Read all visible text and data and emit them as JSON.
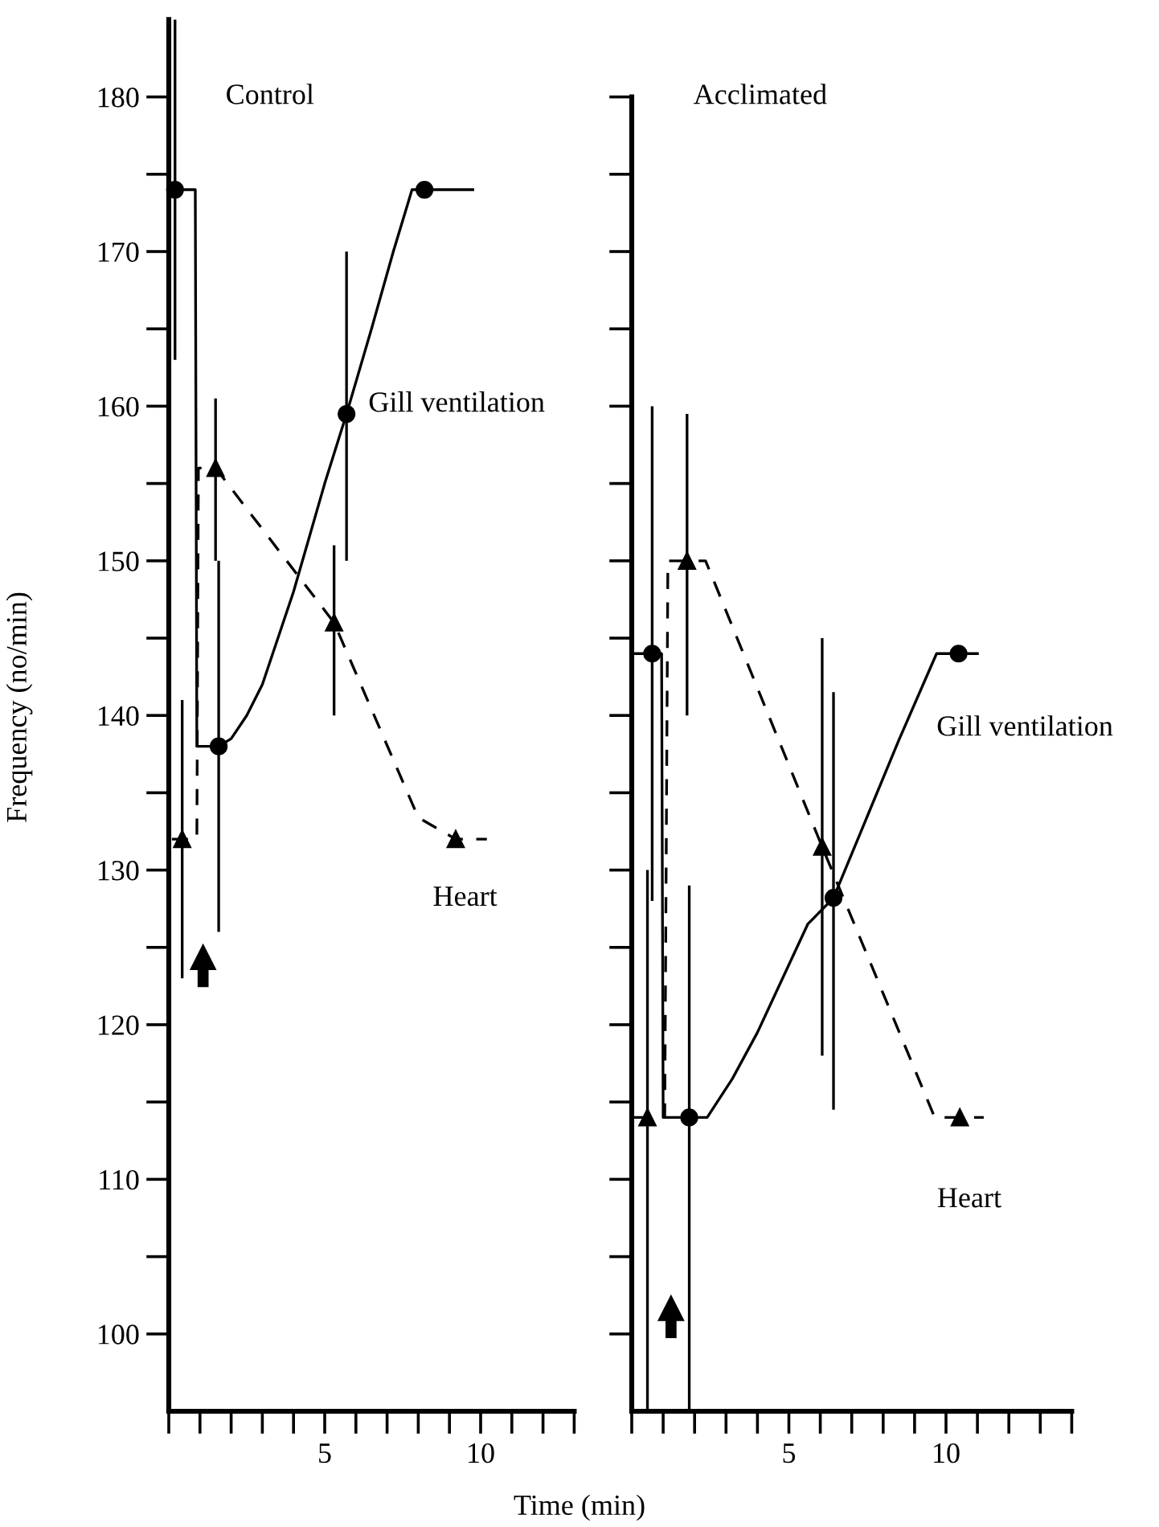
{
  "chart_data": [
    {
      "type": "line",
      "title": "Control",
      "xlabel": "Time (min)",
      "ylabel": "Frequency (no/min)",
      "xlim": [
        0,
        13
      ],
      "xticks": [
        {
          "value": 0,
          "label": null
        },
        {
          "value": 1,
          "label": null
        },
        {
          "value": 2,
          "label": null
        },
        {
          "value": 3,
          "label": null
        },
        {
          "value": 4,
          "label": null
        },
        5,
        {
          "value": 6,
          "label": null
        },
        {
          "value": 7,
          "label": null
        },
        {
          "value": 8,
          "label": null
        },
        {
          "value": 9,
          "label": null
        },
        10,
        {
          "value": 11,
          "label": null
        },
        {
          "value": 12,
          "label": null
        },
        {
          "value": 13,
          "label": null
        }
      ],
      "ylim": [
        95,
        185
      ],
      "yticks": [
        100,
        {
          "value": 105,
          "label": null
        },
        110,
        {
          "value": 115,
          "label": null
        },
        120,
        {
          "value": 125,
          "label": null
        },
        130,
        {
          "value": 135,
          "label": null
        },
        140,
        {
          "value": 145,
          "label": null
        },
        150,
        {
          "value": 155,
          "label": null
        },
        160,
        {
          "value": 165,
          "label": null
        },
        170,
        {
          "value": 175,
          "label": null
        },
        180
      ],
      "series": [
        {
          "name": "Gill ventilation",
          "line_style": "solid",
          "marker": "none",
          "color": "#000000",
          "x": [
            0.0,
            0.2,
            0.85,
            0.9,
            1.6,
            2.0,
            2.5,
            3.0,
            3.5,
            4.0,
            4.5,
            5.0,
            5.7,
            6.5,
            7.2,
            7.8,
            8.2,
            9.75
          ],
          "values": [
            174,
            174,
            174,
            138,
            138,
            138.5,
            140,
            142,
            145,
            148,
            151.5,
            155,
            159.5,
            165,
            170,
            174,
            174,
            174
          ]
        },
        {
          "type": "scatter",
          "marker": "circle",
          "color": "#000000",
          "x": [
            0.2,
            1.6,
            5.7,
            8.2
          ],
          "values": [
            174,
            138,
            159.5,
            174
          ],
          "errors": [
            [
              163,
              185
            ],
            [
              126,
              150
            ],
            [
              150,
              170
            ],
            null
          ]
        },
        {
          "name": "Heart",
          "line_style": "dashed",
          "marker": "none",
          "color": "#000000",
          "x": [
            0.1,
            0.43,
            0.9,
            0.95,
            1.5,
            5.3,
            8.0,
            9.2,
            10.2
          ],
          "values": [
            132,
            132,
            132,
            156,
            156,
            146,
            133.4,
            132,
            132
          ]
        },
        {
          "type": "scatter",
          "marker": "triangle",
          "color": "#000000",
          "x": [
            0.43,
            1.5,
            5.3,
            9.2
          ],
          "values": [
            132,
            156,
            146,
            132
          ],
          "errors": [
            [
              123,
              141
            ],
            [
              150,
              160.5
            ],
            [
              140,
              151
            ],
            null
          ]
        }
      ]
    },
    {
      "type": "line",
      "title": "Acclimated",
      "tick_labels": "x",
      "xlim": [
        0,
        14
      ],
      "xticks": [
        {
          "value": 0,
          "label": null
        },
        {
          "value": 1,
          "label": null
        },
        {
          "value": 2,
          "label": null
        },
        {
          "value": 3,
          "label": null
        },
        {
          "value": 4,
          "label": null
        },
        5,
        {
          "value": 6,
          "label": null
        },
        {
          "value": 7,
          "label": null
        },
        {
          "value": 8,
          "label": null
        },
        {
          "value": 9,
          "label": null
        },
        10,
        {
          "value": 11,
          "label": null
        },
        {
          "value": 12,
          "label": null
        },
        {
          "value": 13,
          "label": null
        },
        {
          "value": 14,
          "label": null
        }
      ],
      "ylim": [
        95,
        180
      ],
      "yticks": [
        100,
        105,
        110,
        115,
        120,
        125,
        130,
        135,
        140,
        145,
        150,
        155,
        160,
        165,
        170,
        175,
        180
      ],
      "series": [
        {
          "name": "Gill ventilation",
          "line_style": "solid",
          "marker": "none",
          "color": "#000000",
          "x": [
            0.05,
            0.65,
            0.95,
            1.0,
            1.83,
            2.4,
            3.2,
            4.0,
            4.8,
            5.6,
            6.42,
            7.5,
            8.5,
            9.7,
            10.4,
            11.0
          ],
          "values": [
            144,
            144,
            144,
            114,
            114,
            114,
            116.5,
            119.5,
            123,
            126.5,
            128.2,
            133.5,
            138.4,
            144,
            144,
            144
          ]
        },
        {
          "type": "scatter",
          "marker": "circle",
          "color": "#000000",
          "x": [
            0.65,
            1.83,
            6.42,
            10.4
          ],
          "values": [
            144,
            114,
            128.2,
            144
          ],
          "errors": [
            [
              128,
              160
            ],
            [
              95,
              129
            ],
            [
              114.5,
              141.5
            ],
            null
          ]
        },
        {
          "name": "Heart",
          "line_style": "dashed",
          "marker": "none",
          "color": "#000000",
          "x": [
            0.05,
            0.5,
            1.05,
            1.15,
            1.76,
            2.35,
            6.06,
            9.64,
            10.44,
            11.2
          ],
          "values": [
            114,
            114,
            114,
            150,
            150,
            150,
            131.5,
            114,
            114,
            114
          ]
        },
        {
          "type": "scatter",
          "marker": "triangle",
          "color": "#000000",
          "x": [
            0.5,
            1.76,
            6.06,
            10.44
          ],
          "values": [
            114,
            150,
            131.5,
            114
          ],
          "errors": [
            [
              95,
              130
            ],
            [
              140,
              159.5
            ],
            [
              118,
              145
            ],
            null
          ]
        }
      ]
    }
  ]
}
